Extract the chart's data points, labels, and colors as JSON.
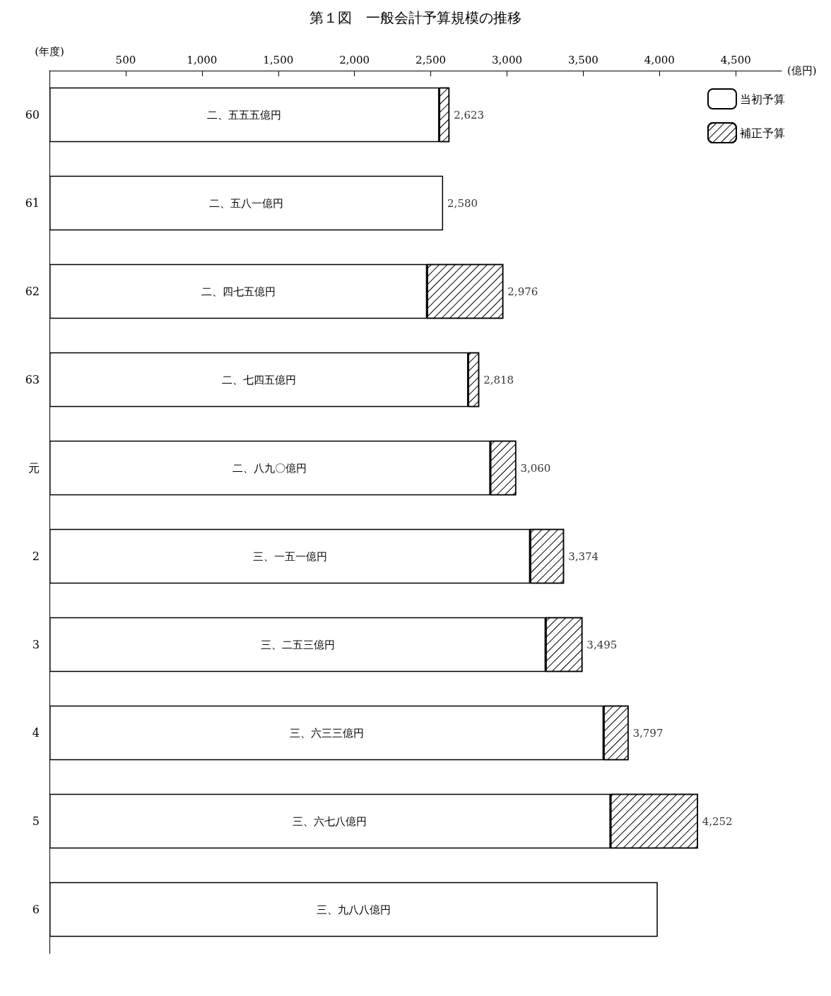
{
  "chart_data": {
    "type": "bar",
    "orientation": "horizontal",
    "stacked": true,
    "title": "第１図　一般会計予算規模の推移",
    "xlabel": "(億円)",
    "ylabel": "(年度)",
    "categories": [
      "60",
      "61",
      "62",
      "63",
      "元",
      "2",
      "3",
      "4",
      "5",
      "6"
    ],
    "series": [
      {
        "name": "当初予算",
        "color": "#ffffff",
        "values": [
          2555,
          2581,
          2475,
          2745,
          2890,
          3151,
          3253,
          3633,
          3678,
          3988
        ],
        "value_labels": [
          "二、五五五億円",
          "二、五八一億円",
          "二、四七五億円",
          "二、七四五億円",
          "二、八九〇億円",
          "三、一五一億円",
          "三、二五三億円",
          "三、六三三億円",
          "三、六七八億円",
          "三、九八八億円"
        ]
      },
      {
        "name": "補正予算",
        "color": "#ffffff",
        "values": [
          68,
          null,
          501,
          73,
          170,
          223,
          242,
          164,
          574,
          null
        ]
      }
    ],
    "totals": [
      "2,623",
      "2,580",
      "2,976",
      "2,818",
      "3,060",
      "3,374",
      "3,495",
      "3,797",
      "4,252",
      null
    ],
    "xlim": [
      0,
      4800
    ],
    "xticks": [
      {
        "value": 500,
        "label": "500"
      },
      {
        "value": 1000,
        "label": "1,000"
      },
      {
        "value": 1500,
        "label": "1,500"
      },
      {
        "value": 2000,
        "label": "2,000"
      },
      {
        "value": 2500,
        "label": "2,500"
      },
      {
        "value": 3000,
        "label": "3,000"
      },
      {
        "value": 3500,
        "label": "3,500"
      },
      {
        "value": 4000,
        "label": "4,000"
      },
      {
        "value": 4500,
        "label": "4,500"
      }
    ],
    "legend": "top right",
    "grid": false
  }
}
